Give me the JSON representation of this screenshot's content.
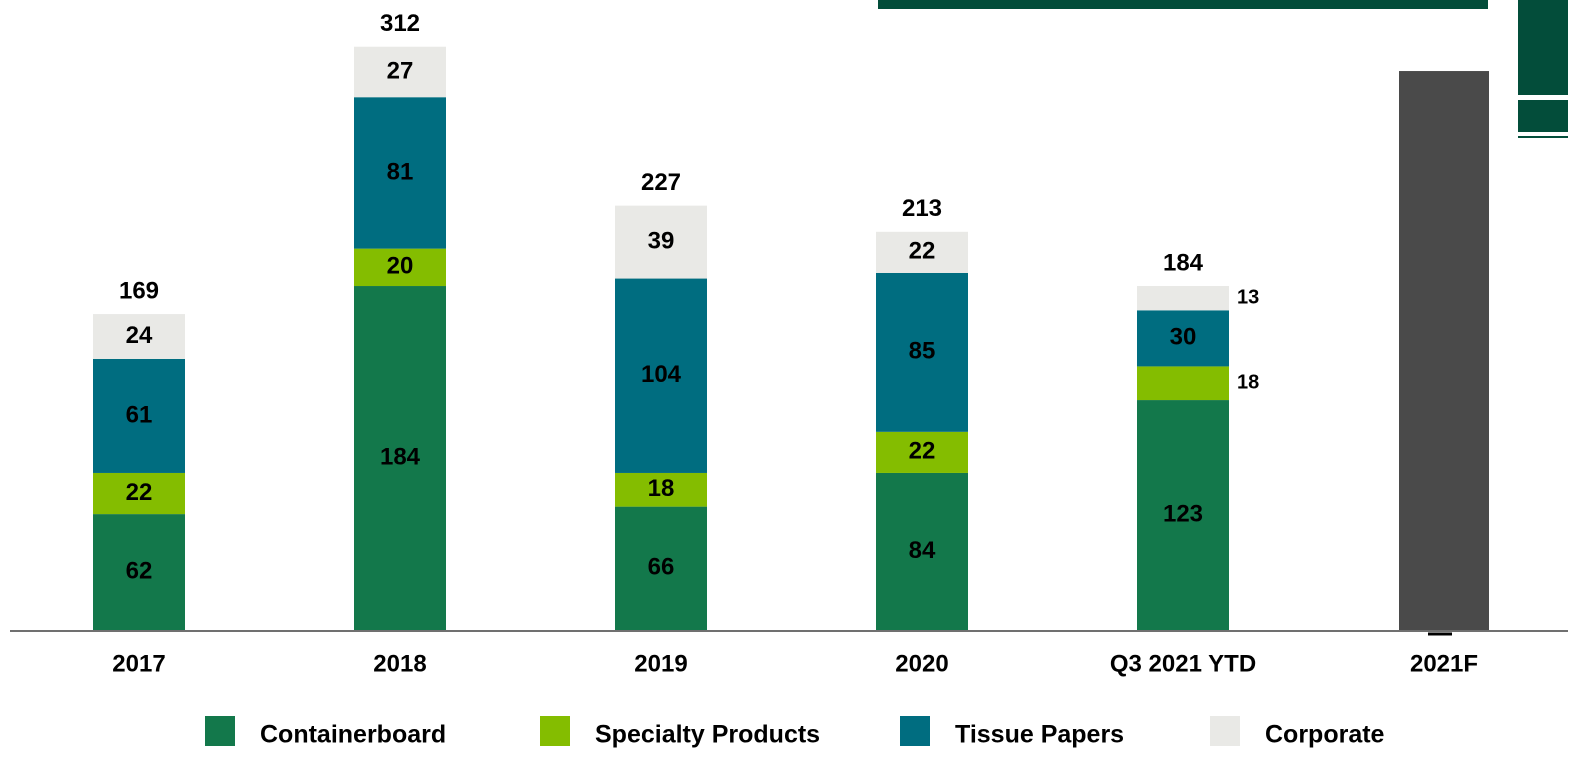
{
  "chart_data": {
    "type": "stacked_bar",
    "categories": [
      "2017",
      "2018",
      "2019",
      "2020",
      "Q3 2021 YTD",
      "2021F"
    ],
    "series": [
      {
        "name": "Containerboard",
        "color": "#13784b",
        "values": [
          62,
          184,
          66,
          84,
          123,
          null
        ]
      },
      {
        "name": "Specialty Products",
        "color": "#84bd00",
        "values": [
          22,
          20,
          18,
          22,
          18,
          null
        ]
      },
      {
        "name": "Tissue Papers",
        "color": "#006d80",
        "values": [
          61,
          81,
          104,
          85,
          30,
          null
        ]
      },
      {
        "name": "Corporate",
        "color": "#e9e9e6",
        "values": [
          24,
          27,
          39,
          22,
          13,
          null
        ]
      }
    ],
    "totals": [
      169,
      312,
      227,
      213,
      184,
      null
    ],
    "forecast_values": [
      null,
      null,
      null,
      null,
      null,
      299
    ],
    "forecast_color": "#4a4a4a",
    "ylim": [
      0,
      337
    ]
  }
}
